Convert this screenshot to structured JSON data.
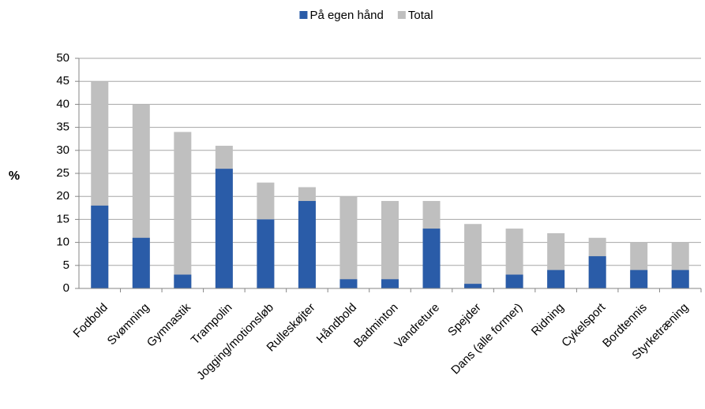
{
  "chart_data": {
    "type": "bar",
    "bar_mode": "overlap",
    "y_label": "%",
    "categories": [
      "Fodbold",
      "Svømning",
      "Gymnastik",
      "Trampolin",
      "Jogging/motionsløb",
      "Rulleskøjter",
      "Håndbold",
      "Badminton",
      "Vandreture",
      "Spejder",
      "Dans (alle former)",
      "Ridning",
      "Cykelsport",
      "Bordtennis",
      "Styrketræning"
    ],
    "series": [
      {
        "name": "På egen hånd",
        "color": "#2a5ca8",
        "values": [
          18,
          11,
          3,
          26,
          15,
          19,
          2,
          2,
          13,
          1,
          3,
          4,
          7,
          4,
          4
        ]
      },
      {
        "name": "Total",
        "color": "#bfbfbf",
        "values": [
          45,
          40,
          34,
          31,
          23,
          22,
          20,
          19,
          19,
          14,
          13,
          12,
          11,
          10,
          10
        ]
      }
    ],
    "ylim": [
      0,
      50
    ],
    "yticks": [
      0,
      5,
      10,
      15,
      20,
      25,
      30,
      35,
      40,
      45,
      50
    ],
    "grid": true,
    "legend": "top"
  }
}
